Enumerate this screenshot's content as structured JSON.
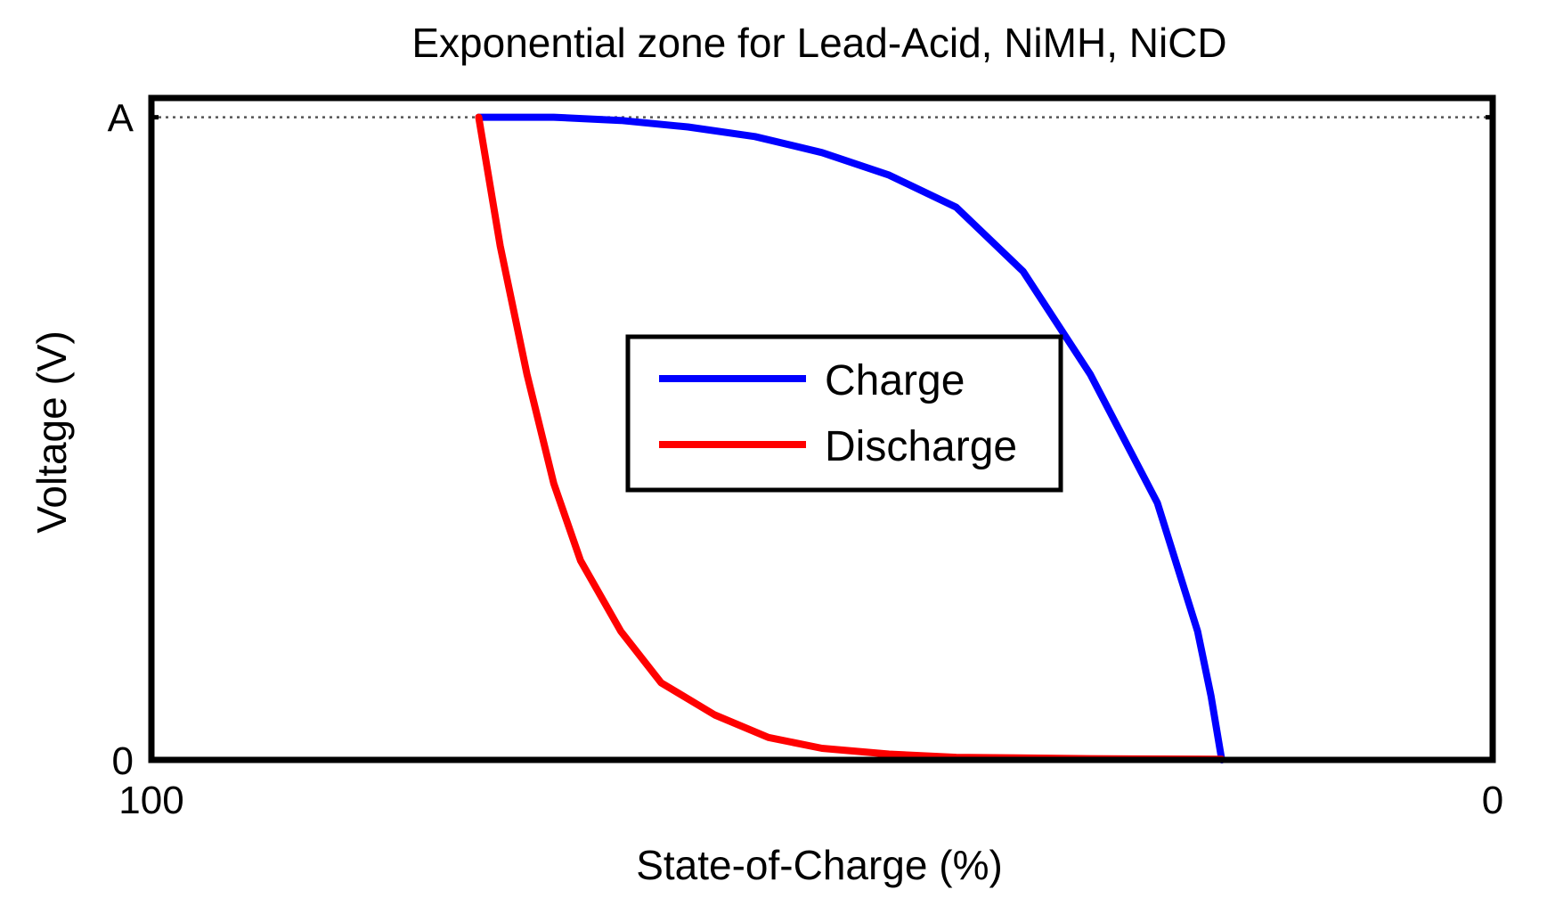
{
  "chart_data": {
    "type": "line",
    "title": "Exponential zone for Lead-Acid, NiMH, NiCD",
    "xlabel": "State-of-Charge (%)",
    "ylabel": "Voltage (V)",
    "x_ticks": [
      "100",
      "0"
    ],
    "y_ticks": [
      "0",
      "A"
    ],
    "xlim": [
      100,
      0
    ],
    "ylim": [
      0,
      1.03
    ],
    "x_reversed": true,
    "reference_line": {
      "y": 1.0,
      "style": "dotted"
    },
    "legend": {
      "position": "center"
    },
    "series": [
      {
        "name": "Charge",
        "color": "#0000ff",
        "points": [
          [
            75.6,
            1.0
          ],
          [
            70,
            1.0
          ],
          [
            65,
            0.995
          ],
          [
            60,
            0.985
          ],
          [
            55,
            0.97
          ],
          [
            50,
            0.945
          ],
          [
            45,
            0.91
          ],
          [
            40,
            0.86
          ],
          [
            35,
            0.76
          ],
          [
            30,
            0.6
          ],
          [
            25,
            0.4
          ],
          [
            22,
            0.2
          ],
          [
            21,
            0.1
          ],
          [
            20.2,
            0.0
          ]
        ]
      },
      {
        "name": "Discharge",
        "color": "#ff0000",
        "points": [
          [
            75.6,
            1.0
          ],
          [
            74,
            0.8
          ],
          [
            72,
            0.6
          ],
          [
            70,
            0.43
          ],
          [
            68,
            0.31
          ],
          [
            65,
            0.2
          ],
          [
            62,
            0.12
          ],
          [
            58,
            0.07
          ],
          [
            54,
            0.035
          ],
          [
            50,
            0.018
          ],
          [
            45,
            0.009
          ],
          [
            40,
            0.004
          ],
          [
            30,
            0.002
          ],
          [
            20.2,
            0.001
          ]
        ]
      }
    ]
  }
}
